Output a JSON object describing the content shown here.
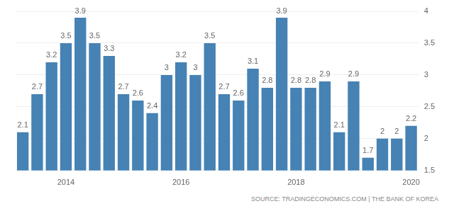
{
  "chart_data": {
    "type": "bar",
    "categories": [
      null,
      null,
      null,
      "2014",
      null,
      null,
      null,
      null,
      null,
      null,
      null,
      "2016",
      null,
      null,
      null,
      null,
      null,
      null,
      null,
      "2018",
      null,
      null,
      null,
      null,
      null,
      null,
      null,
      "2020"
    ],
    "values": [
      2.1,
      2.7,
      3.2,
      3.5,
      3.9,
      3.5,
      3.3,
      2.7,
      2.6,
      2.4,
      3,
      3.2,
      3,
      3.5,
      2.7,
      2.6,
      3.1,
      2.8,
      3.9,
      2.8,
      2.8,
      2.9,
      2.1,
      2.9,
      1.7,
      2,
      2,
      2.2
    ],
    "color": "#4682b4",
    "ylim": [
      1.5,
      4
    ],
    "yticks": [
      1.5,
      2,
      2.5,
      3,
      3.5,
      4
    ],
    "grid": true,
    "data_labels": true,
    "annotations": [
      "SOURCE: TRADINGECONOMICS.COM | THE BANK OF KOREA"
    ]
  }
}
